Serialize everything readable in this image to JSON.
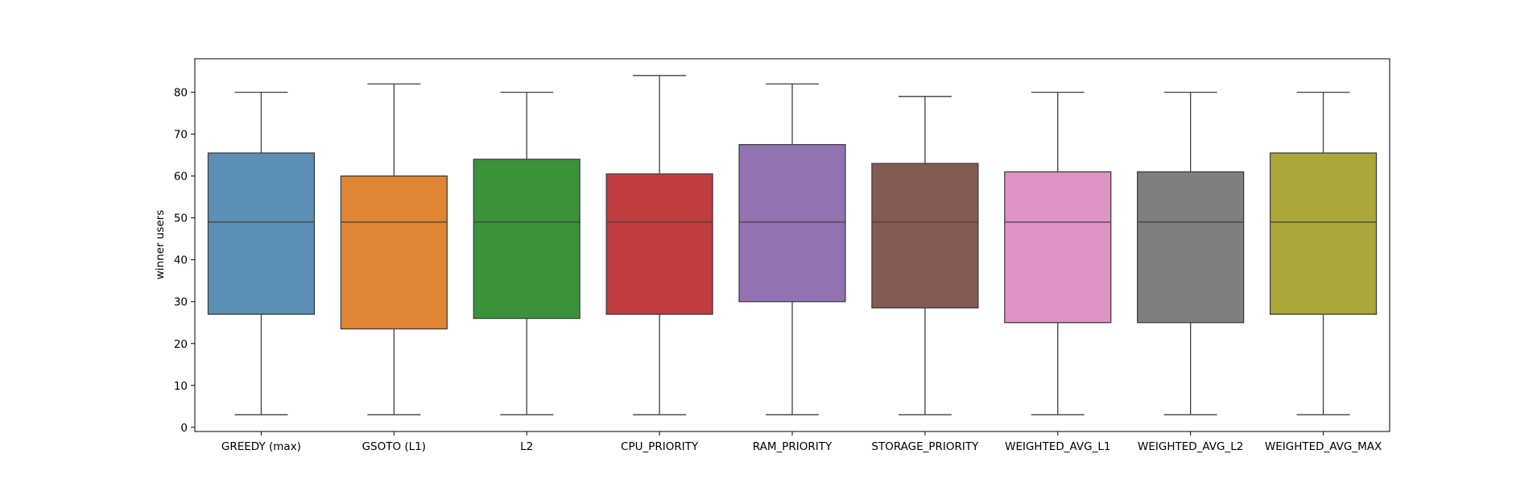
{
  "chart_data": {
    "type": "box",
    "title": "",
    "xlabel": "",
    "ylabel": "winner users",
    "ylim": [
      -1,
      88
    ],
    "yticks": [
      0,
      10,
      20,
      30,
      40,
      50,
      60,
      70,
      80
    ],
    "grid": false,
    "legend": "none",
    "categories": [
      "GREEDY (max)",
      "GSOTO (L1)",
      "L2",
      "CPU_PRIORITY",
      "RAM_PRIORITY",
      "STORAGE_PRIORITY",
      "WEIGHTED_AVG_L1",
      "WEIGHTED_AVG_L2",
      "WEIGHTED_AVG_MAX"
    ],
    "boxes": [
      {
        "category": "GREEDY (max)",
        "min": 3,
        "q1": 27,
        "median": 49,
        "q3": 65.5,
        "max": 80,
        "color": "#5b8fb6"
      },
      {
        "category": "GSOTO (L1)",
        "min": 3,
        "q1": 23.5,
        "median": 49,
        "q3": 60,
        "max": 82,
        "color": "#e08534"
      },
      {
        "category": "L2",
        "min": 3,
        "q1": 26,
        "median": 49,
        "q3": 64,
        "max": 80,
        "color": "#3a923a"
      },
      {
        "category": "CPU_PRIORITY",
        "min": 3,
        "q1": 27,
        "median": 49,
        "q3": 60.5,
        "max": 84,
        "color": "#c03d3e"
      },
      {
        "category": "RAM_PRIORITY",
        "min": 3,
        "q1": 30,
        "median": 49,
        "q3": 67.5,
        "max": 82,
        "color": "#9372b2"
      },
      {
        "category": "STORAGE_PRIORITY",
        "min": 3,
        "q1": 28.5,
        "median": 49,
        "q3": 63,
        "max": 79,
        "color": "#845b53"
      },
      {
        "category": "WEIGHTED_AVG_L1",
        "min": 3,
        "q1": 25,
        "median": 49,
        "q3": 61,
        "max": 80,
        "color": "#de94c4"
      },
      {
        "category": "WEIGHTED_AVG_L2",
        "min": 3,
        "q1": 25,
        "median": 49,
        "q3": 61,
        "max": 80,
        "color": "#7f7f7f"
      },
      {
        "category": "WEIGHTED_AVG_MAX",
        "min": 3,
        "q1": 27,
        "median": 49,
        "q3": 65.5,
        "max": 80,
        "color": "#a9a838"
      }
    ]
  }
}
